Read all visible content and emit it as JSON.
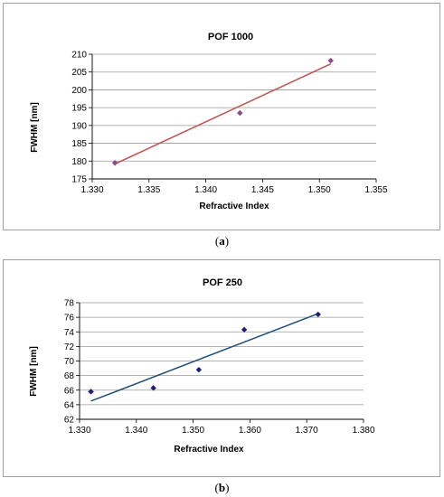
{
  "chart_data": [
    {
      "type": "scatter",
      "title": "POF 1000",
      "xlabel": "Refractive Index",
      "ylabel": "FWHM [nm]",
      "xlim": [
        1.33,
        1.355
      ],
      "ylim": [
        175,
        210
      ],
      "x_ticks": [
        "1.330",
        "1.335",
        "1.340",
        "1.345",
        "1.350",
        "1.355"
      ],
      "y_ticks": [
        "175",
        "180",
        "185",
        "190",
        "195",
        "200",
        "205",
        "210"
      ],
      "grid": "horizontal",
      "marker_color": "#8B4A8B",
      "line_color": "#C0504D",
      "points": [
        {
          "x": 1.332,
          "y": 179.5
        },
        {
          "x": 1.343,
          "y": 193.5
        },
        {
          "x": 1.351,
          "y": 208.2
        }
      ],
      "trendline": {
        "x": [
          1.332,
          1.351
        ],
        "y": [
          179.2,
          207.3
        ]
      },
      "caption": "a"
    },
    {
      "type": "scatter",
      "title": "POF 250",
      "xlabel": "Refractive Index",
      "ylabel": "FWHM [nm]",
      "xlim": [
        1.33,
        1.38
      ],
      "ylim": [
        62,
        78
      ],
      "x_ticks": [
        "1.330",
        "1.340",
        "1.350",
        "1.360",
        "1.370",
        "1.380"
      ],
      "y_ticks": [
        "62",
        "64",
        "66",
        "68",
        "70",
        "72",
        "74",
        "76",
        "78"
      ],
      "grid": "horizontal",
      "marker_color": "#1F1F7A",
      "line_color": "#1F4E79",
      "points": [
        {
          "x": 1.332,
          "y": 65.8
        },
        {
          "x": 1.343,
          "y": 66.3
        },
        {
          "x": 1.351,
          "y": 68.8
        },
        {
          "x": 1.359,
          "y": 74.3
        },
        {
          "x": 1.372,
          "y": 76.4
        }
      ],
      "trendline": {
        "x": [
          1.332,
          1.372
        ],
        "y": [
          64.5,
          76.5
        ]
      },
      "caption": "b"
    }
  ]
}
